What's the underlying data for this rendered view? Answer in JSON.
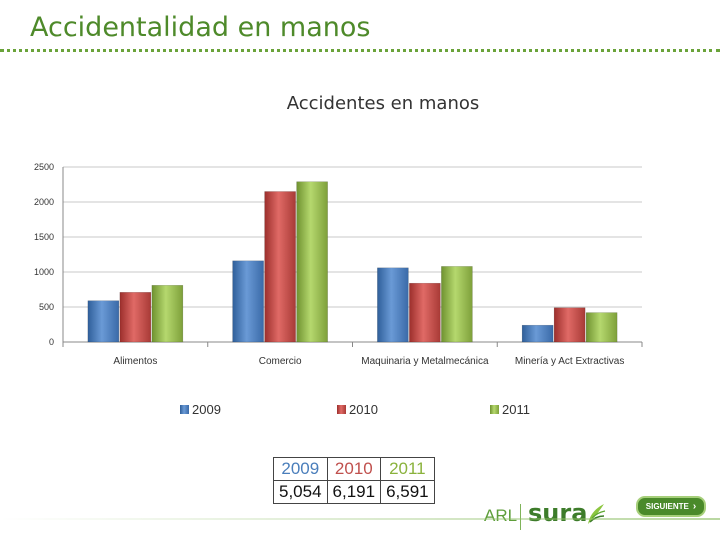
{
  "slide": {
    "title": "Accidentalidad en manos"
  },
  "chart_data": {
    "type": "bar",
    "title": "Accidentes en manos",
    "categories": [
      "Alimentos",
      "Comercio",
      "Maquinaria y Metalmecánica",
      "Minería y Act Extractivas"
    ],
    "series": [
      {
        "name": "2009",
        "values": [
          590,
          1160,
          1060,
          240
        ],
        "color": "#4a7ebb"
      },
      {
        "name": "2010",
        "values": [
          710,
          2150,
          840,
          490
        ],
        "color": "#c0504d"
      },
      {
        "name": "2011",
        "values": [
          810,
          2290,
          1080,
          420
        ],
        "color": "#9bbb59"
      }
    ],
    "ylim": [
      0,
      2500
    ],
    "yticks": [
      "0",
      "500",
      "1000",
      "1500",
      "2000",
      "2500"
    ],
    "grid": true,
    "legend": "bottom"
  },
  "totals": {
    "headers": [
      "2009",
      "2010",
      "2011"
    ],
    "values": [
      "5,054",
      "6,191",
      "6,591"
    ]
  },
  "brand": {
    "arl": "ARL",
    "sura": "sura"
  },
  "nav": {
    "next_label": "SIGUIENTE"
  }
}
